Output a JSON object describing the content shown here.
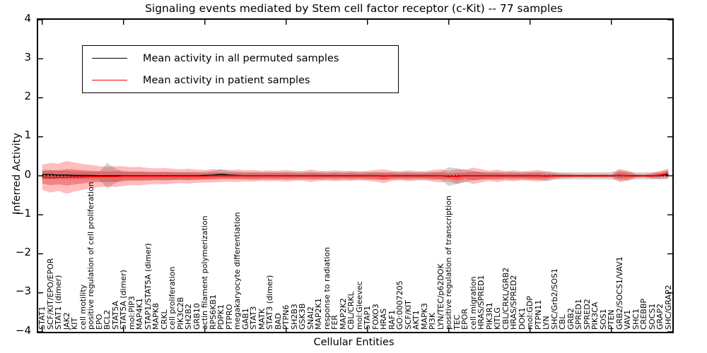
{
  "title": "Signaling events mediated by Stem cell factor receptor (c-Kit) -- 77 samples",
  "axes": {
    "ylabel": "Inferred Activity",
    "xlabel": "Cellular Entities",
    "ytick_labels": [
      "4",
      "3",
      "2",
      "1",
      "0",
      "−1",
      "−2",
      "−3",
      "−4"
    ]
  },
  "legend": {
    "items": [
      {
        "label": "Mean activity in all permuted samples",
        "color": "#000000"
      },
      {
        "label": "Mean activity in patient samples",
        "color": "#ff0000"
      }
    ]
  },
  "colors": {
    "patient_line": "#ff0000",
    "permuted_line": "#000000",
    "patient_band_outer": "rgba(255,0,0,0.26)",
    "patient_band_inner": "rgba(215,0,0,0.30)",
    "permuted_band": "rgba(130,130,130,0.35)",
    "zero_line": "#000000"
  },
  "chart_data": {
    "type": "line",
    "title": "Signaling events mediated by Stem cell factor receptor (c-Kit) -- 77 samples",
    "xlabel": "Cellular Entities",
    "ylabel": "Inferred Activity",
    "ylim": [
      -4,
      4
    ],
    "yticks": [
      4,
      3,
      2,
      1,
      0,
      -1,
      -2,
      -3,
      -4
    ],
    "xtick_step": 10,
    "grid": false,
    "legend_position": "upper left",
    "categories": [
      "STAT1",
      "SCF/KIT/EPO/EPOR",
      "STAT1 (dimer)",
      "JAK2",
      "KIT",
      "cell motility",
      "positive regulation of cell proliferation",
      "EPO",
      "BCL2",
      "STAT5A",
      "STAT5A (dimer)",
      "mol:PIP3",
      "MAP4K1",
      "STAP1/STAT5A (dimer)",
      "MAPK8",
      "CRKL",
      "cell proliferation",
      "PIK3C2B",
      "SH2B2",
      "GRB10",
      "actin filament polymerization",
      "RPS6KB1",
      "PDPK1",
      "PTPRO",
      "megakaryocyte differentiation",
      "GAB1",
      "STAT3",
      "MATK",
      "STAT3 (dimer)",
      "BAD",
      "PTPN6",
      "SH2B3",
      "GSK3B",
      "SNAI2",
      "MAP2K1",
      "response to radiation",
      "FER",
      "MAP2K2",
      "CBL/CRKL",
      "mol:Gleevec",
      "STAP1",
      "FOXO3",
      "HRAS",
      "RAF1",
      "GO:0007205",
      "SCF/KIT",
      "AKT1",
      "MAPK3",
      "PI3K",
      "LYN/TEC/p62DOK",
      "positive regulation of transcription",
      "TEC",
      "EPOR",
      "cell migration",
      "HRAS/SPRED1",
      "PIK3R1",
      "KITLG",
      "CBL/CRKL/GRB2",
      "HRAS/SPRED2",
      "DOK1",
      "mol:GDP",
      "PTPN11",
      "LYN",
      "SHC/Grb2/SOS1",
      "CBL",
      "GRB2",
      "SPRED1",
      "SPRED2",
      "PIK3CA",
      "SOS1",
      "PTEN",
      "GRB2/SOCS1/VAV1",
      "VAV1",
      "SHC1",
      "CREBBP",
      "SOCS1",
      "GRAP2",
      "SHC/GRAP2"
    ],
    "series": [
      {
        "name": "Mean activity in all permuted samples",
        "color": "#000000",
        "values": [
          0.03,
          0.03,
          0.02,
          0.02,
          0.01,
          0.01,
          0.01,
          0,
          0,
          0,
          0,
          0,
          0,
          0,
          0,
          0,
          0,
          0,
          0,
          0,
          0.01,
          0.02,
          0.04,
          0.02,
          0.01,
          0,
          0,
          0,
          0,
          0,
          0,
          0,
          0,
          0,
          0,
          0,
          0,
          0,
          0,
          0,
          0,
          0,
          -0.01,
          0,
          0,
          0,
          0,
          0,
          0,
          0,
          -0.02,
          -0.01,
          0,
          0,
          0,
          0,
          0,
          0,
          0,
          0,
          0,
          0,
          -0.01,
          0,
          0,
          0,
          0,
          0,
          0,
          0,
          0,
          0.01,
          0,
          0,
          0,
          0,
          0.01,
          0.03
        ]
      },
      {
        "name": "Mean activity in patient samples",
        "color": "#ff0000",
        "values": [
          -0.04,
          -0.05,
          -0.04,
          -0.04,
          -0.03,
          -0.03,
          -0.02,
          -0.02,
          -0.02,
          -0.02,
          -0.01,
          -0.01,
          -0.01,
          -0.01,
          -0.01,
          -0.01,
          -0.01,
          -0.01,
          -0.01,
          -0.01,
          -0.01,
          0,
          0,
          0,
          0,
          0,
          0,
          0,
          0,
          0,
          0,
          0,
          0,
          0,
          0,
          0,
          0,
          0,
          0,
          0,
          0,
          0,
          -0.01,
          0,
          0,
          0,
          0,
          0,
          0,
          0,
          -0.01,
          -0.02,
          0,
          0,
          0,
          0,
          0,
          0,
          0,
          0,
          0,
          0,
          -0.01,
          0,
          0,
          0,
          0,
          0,
          0,
          0,
          0,
          0.01,
          0,
          0,
          0,
          0,
          0.02,
          0.06
        ]
      }
    ],
    "bands": [
      {
        "name": "permuted samples std",
        "center_series": 0,
        "color_key": "permuted_band",
        "half_widths": [
          0.12,
          0.12,
          0.11,
          0.11,
          0.1,
          0.1,
          0.1,
          0.1,
          0.33,
          0.18,
          0.1,
          0.1,
          0.1,
          0.1,
          0.1,
          0.1,
          0.1,
          0.1,
          0.1,
          0.1,
          0.1,
          0.11,
          0.12,
          0.1,
          0.1,
          0.1,
          0.1,
          0.1,
          0.1,
          0.1,
          0.1,
          0.1,
          0.1,
          0.1,
          0.1,
          0.1,
          0.1,
          0.1,
          0.1,
          0.1,
          0.1,
          0.1,
          0.1,
          0.1,
          0.1,
          0.1,
          0.1,
          0.1,
          0.1,
          0.1,
          0.24,
          0.2,
          0.16,
          0.12,
          0.1,
          0.1,
          0.1,
          0.1,
          0.1,
          0.1,
          0.1,
          0.1,
          0.13,
          0.1,
          0.09,
          0.09,
          0.09,
          0.09,
          0.09,
          0.09,
          0.1,
          0.13,
          0.11,
          0.09,
          0.09,
          0.09,
          0.1,
          0.11
        ]
      },
      {
        "name": "patient samples std",
        "center_series": 1,
        "color_key": "patient_band_outer",
        "half_widths": [
          0.32,
          0.38,
          0.35,
          0.42,
          0.37,
          0.33,
          0.3,
          0.27,
          0.25,
          0.27,
          0.25,
          0.23,
          0.24,
          0.21,
          0.2,
          0.21,
          0.19,
          0.18,
          0.19,
          0.17,
          0.16,
          0.17,
          0.16,
          0.15,
          0.16,
          0.14,
          0.15,
          0.13,
          0.14,
          0.13,
          0.15,
          0.13,
          0.12,
          0.16,
          0.13,
          0.12,
          0.14,
          0.12,
          0.13,
          0.11,
          0.13,
          0.15,
          0.18,
          0.13,
          0.11,
          0.14,
          0.12,
          0.11,
          0.15,
          0.17,
          0.13,
          0.19,
          0.15,
          0.21,
          0.17,
          0.13,
          0.16,
          0.12,
          0.14,
          0.11,
          0.13,
          0.15,
          0.11,
          0.08,
          0.06,
          0.05,
          0.04,
          0.05,
          0.04,
          0.05,
          0.04,
          0.17,
          0.13,
          0.05,
          0.04,
          0.07,
          0.1,
          0.13
        ]
      },
      {
        "name": "patient samples inner std",
        "center_series": 1,
        "color_key": "patient_band_inner",
        "half_widths": [
          0.16,
          0.19,
          0.18,
          0.21,
          0.19,
          0.17,
          0.15,
          0.14,
          0.13,
          0.14,
          0.13,
          0.12,
          0.12,
          0.11,
          0.1,
          0.11,
          0.1,
          0.09,
          0.1,
          0.09,
          0.08,
          0.09,
          0.08,
          0.08,
          0.08,
          0.07,
          0.08,
          0.07,
          0.07,
          0.07,
          0.08,
          0.07,
          0.06,
          0.08,
          0.07,
          0.06,
          0.07,
          0.06,
          0.07,
          0.06,
          0.07,
          0.08,
          0.09,
          0.07,
          0.06,
          0.07,
          0.06,
          0.06,
          0.08,
          0.09,
          0.07,
          0.1,
          0.08,
          0.11,
          0.09,
          0.07,
          0.08,
          0.06,
          0.07,
          0.06,
          0.07,
          0.08,
          0.06,
          0.04,
          0.03,
          0.03,
          0.02,
          0.03,
          0.02,
          0.03,
          0.02,
          0.09,
          0.07,
          0.03,
          0.02,
          0.04,
          0.05,
          0.07
        ]
      }
    ],
    "zero_reference_line": {
      "value": 0,
      "style": "dotted",
      "color": "#000000"
    }
  }
}
